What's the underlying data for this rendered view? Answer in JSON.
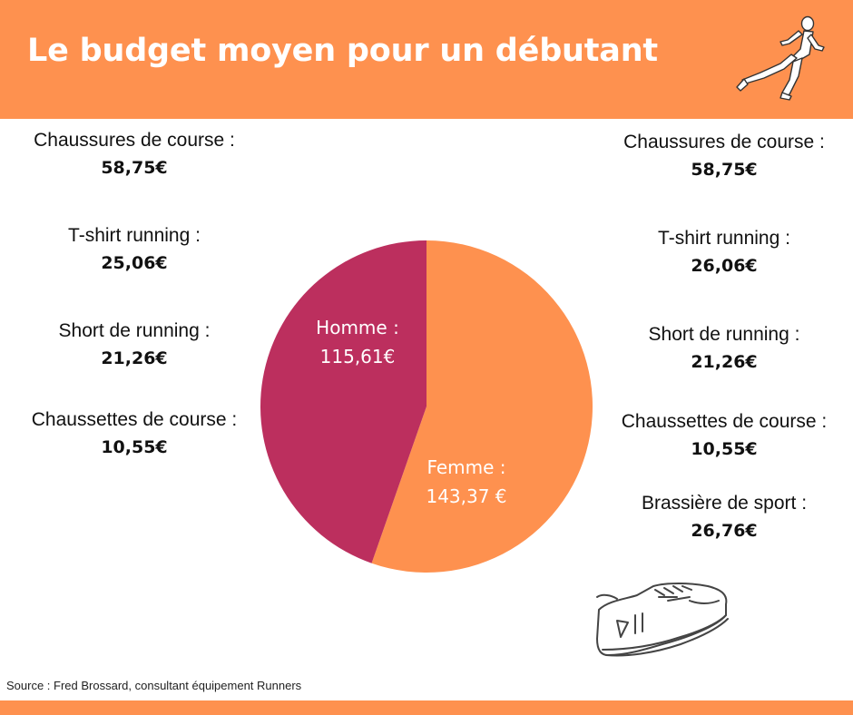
{
  "title": "Le budget moyen pour un débutant",
  "colors": {
    "accent": "#fe914f",
    "homme": "#bc2f5e",
    "femme": "#fe914f",
    "header_text": "#ffffff"
  },
  "icons": {
    "header": "runner-icon",
    "bottom": "sneaker-icon"
  },
  "homme_items": [
    {
      "label": "Chaussures de course :",
      "value": "58,75€"
    },
    {
      "label": "T-shirt running :",
      "value": "25,06€"
    },
    {
      "label": "Short de running  :",
      "value": "21,26€"
    },
    {
      "label": "Chaussettes de course :",
      "value": "10,55€"
    }
  ],
  "femme_items": [
    {
      "label": "Chaussures de course :",
      "value": "58,75€"
    },
    {
      "label": "T-shirt running :",
      "value": "26,06€"
    },
    {
      "label": "Short de running  :",
      "value": "21,26€"
    },
    {
      "label": "Chaussettes de course :",
      "value": "10,55€"
    },
    {
      "label": "Brassière de sport :",
      "value": "26,76€"
    }
  ],
  "chart_data": {
    "type": "pie",
    "title": "",
    "slices": [
      {
        "name": "Homme :",
        "value": 115.61,
        "value_label": "115,61€",
        "color": "#bc2f5e"
      },
      {
        "name": "Femme :",
        "value": 143.37,
        "value_label": "143,37 €",
        "color": "#fe914f"
      }
    ],
    "start": "top",
    "direction": "clockwise-femme-first",
    "legend": "none"
  },
  "source": "Source : Fred Brossard, consultant équipement Runners"
}
